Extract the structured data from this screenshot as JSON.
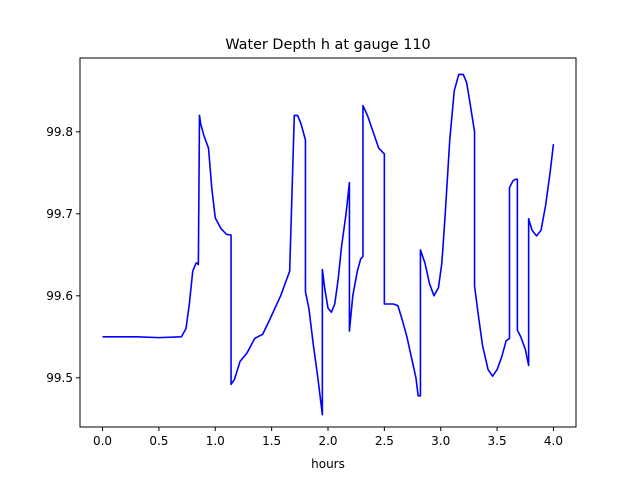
{
  "chart_data": {
    "type": "line",
    "title": "Water Depth h at gauge 110",
    "xlabel": "hours",
    "ylabel": "",
    "xlim": [
      -0.2,
      4.2
    ],
    "ylim": [
      99.44,
      99.89
    ],
    "xticks": [
      0.0,
      0.5,
      1.0,
      1.5,
      2.0,
      2.5,
      3.0,
      3.5,
      4.0
    ],
    "xtick_labels": [
      "0.0",
      "0.5",
      "1.0",
      "1.5",
      "2.0",
      "2.5",
      "3.0",
      "3.5",
      "4.0"
    ],
    "yticks": [
      99.5,
      99.6,
      99.7,
      99.8
    ],
    "ytick_labels": [
      "99.5",
      "99.6",
      "99.7",
      "99.8"
    ],
    "grid": false,
    "legend": "none",
    "series": [
      {
        "color": "#0000ff",
        "x": [
          0.0,
          0.3,
          0.5,
          0.7,
          0.74,
          0.77,
          0.8,
          0.83,
          0.84,
          0.85,
          0.86,
          0.87,
          0.9,
          0.94,
          0.97,
          1.0,
          1.05,
          1.1,
          1.14,
          1.14,
          1.17,
          1.22,
          1.28,
          1.35,
          1.42,
          1.48,
          1.53,
          1.58,
          1.62,
          1.66,
          1.7,
          1.7,
          1.73,
          1.76,
          1.8,
          1.8,
          1.83,
          1.87,
          1.91,
          1.95,
          1.95,
          1.97,
          2.0,
          2.03,
          2.06,
          2.09,
          2.12,
          2.16,
          2.19,
          2.19,
          2.22,
          2.26,
          2.29,
          2.31,
          2.31,
          2.35,
          2.4,
          2.45,
          2.5,
          2.5,
          2.54,
          2.58,
          2.62,
          2.66,
          2.7,
          2.74,
          2.78,
          2.8,
          2.82,
          2.82,
          2.86,
          2.9,
          2.94,
          2.98,
          3.01,
          3.04,
          3.08,
          3.12,
          3.16,
          3.2,
          3.23,
          3.26,
          3.3,
          3.3,
          3.33,
          3.37,
          3.42,
          3.46,
          3.5,
          3.54,
          3.58,
          3.61,
          3.61,
          3.64,
          3.66,
          3.68,
          3.68,
          3.71,
          3.75,
          3.78,
          3.78,
          3.81,
          3.85,
          3.89,
          3.93,
          3.97,
          4.0
        ],
        "y": [
          99.55,
          99.55,
          99.549,
          99.55,
          99.56,
          99.59,
          99.63,
          99.64,
          99.64,
          99.638,
          99.82,
          99.81,
          99.795,
          99.78,
          99.73,
          99.695,
          99.682,
          99.675,
          99.674,
          99.492,
          99.498,
          99.52,
          99.53,
          99.548,
          99.553,
          99.57,
          99.585,
          99.6,
          99.615,
          99.63,
          99.815,
          99.82,
          99.82,
          99.81,
          99.79,
          99.605,
          99.585,
          99.54,
          99.5,
          99.455,
          99.632,
          99.61,
          99.585,
          99.58,
          99.59,
          99.62,
          99.66,
          99.7,
          99.738,
          99.557,
          99.6,
          99.63,
          99.645,
          99.648,
          99.832,
          99.82,
          99.8,
          99.78,
          99.773,
          99.59,
          99.59,
          99.59,
          99.588,
          99.57,
          99.55,
          99.525,
          99.5,
          99.478,
          99.478,
          99.656,
          99.64,
          99.615,
          99.6,
          99.61,
          99.64,
          99.7,
          99.79,
          99.85,
          99.87,
          99.87,
          99.86,
          99.835,
          99.8,
          99.612,
          99.58,
          99.54,
          99.51,
          99.502,
          99.51,
          99.525,
          99.545,
          99.548,
          99.732,
          99.74,
          99.742,
          99.742,
          99.558,
          99.55,
          99.535,
          99.515,
          99.694,
          99.68,
          99.673,
          99.68,
          99.71,
          99.75,
          99.785
        ]
      }
    ]
  }
}
